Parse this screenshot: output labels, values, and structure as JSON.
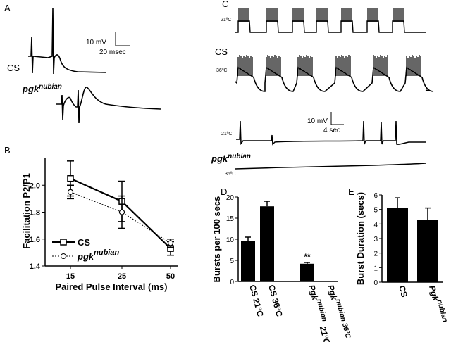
{
  "panels": {
    "A": {
      "label": "A",
      "scale_v": "10 mV",
      "scale_t": "20 msec",
      "cs_label": "CS",
      "pgk_label": "pgk",
      "pgk_sup": "nubian"
    },
    "B": {
      "label": "B"
    },
    "C": {
      "label": "C",
      "cs_label": "CS",
      "temp_low": "21ºC",
      "temp_high": "36ºC",
      "temp_low_2": "21ºC",
      "temp_high_2": "36ºC",
      "scale_v": "10 mV",
      "scale_t": "4 sec",
      "pgk_label": "pgk",
      "pgk_sup": "nubian"
    },
    "D": {
      "label": "D"
    },
    "E": {
      "label": "E"
    }
  },
  "chart_data": [
    {
      "panel": "B",
      "type": "line",
      "x": [
        15,
        25,
        50
      ],
      "xticklabels": [
        "15",
        "25",
        "50"
      ],
      "xlabel": "Paired Pulse Interval (ms)",
      "ylabel": "Facilitation P2/P1",
      "ylim": [
        1.4,
        2.2
      ],
      "yticks": [
        1.4,
        1.6,
        1.8,
        2.0
      ],
      "yticklabels": [
        "1.4",
        "1.6",
        "1.8",
        "2.0"
      ],
      "series": [
        {
          "name": "CS",
          "values": [
            2.05,
            1.88,
            1.53
          ],
          "err": [
            0.13,
            0.15,
            0.05
          ],
          "marker": "square",
          "line": "solid"
        },
        {
          "name": "pgk nubian",
          "values": [
            1.95,
            1.8,
            1.57
          ],
          "err": [
            0.05,
            0.12,
            0.03
          ],
          "marker": "circle",
          "line": "dotted"
        }
      ],
      "legend": "bottom-left",
      "legend_cs": "CS",
      "legend_pgk": "pgk",
      "legend_pgk_sup": "nubian"
    },
    {
      "panel": "D",
      "type": "bar",
      "categories": [
        "CS 21ºC",
        "CS 36ºC",
        "Pgk nubian 21ºC",
        "Pgk nubian 36ºC"
      ],
      "cat_labels": [
        {
          "main": "CS 21ºC",
          "sup": ""
        },
        {
          "main": "CS 36ºC",
          "sup": ""
        },
        {
          "main": "Pgk",
          "sup": "nubian",
          "tail": "21ºC"
        },
        {
          "main": "Pgk",
          "sup": "nubian 36ºC",
          "tail": ""
        }
      ],
      "values": [
        9.5,
        17.8,
        4.2,
        0
      ],
      "err": [
        1.0,
        1.2,
        0.3,
        0
      ],
      "ylabel": "Bursts per 100 secs",
      "ylim": [
        0,
        20
      ],
      "yticks": [
        0,
        5,
        10,
        15,
        20
      ],
      "yticklabels": [
        "0",
        "5",
        "10",
        "15",
        "20"
      ],
      "annotation": "**"
    },
    {
      "panel": "E",
      "type": "bar",
      "categories": [
        "CS",
        "Pgk nubian"
      ],
      "cat_labels": [
        {
          "main": "CS",
          "sup": ""
        },
        {
          "main": "Pgk",
          "sup": "nubian"
        }
      ],
      "values": [
        5.1,
        4.3
      ],
      "err": [
        0.7,
        0.8
      ],
      "ylabel": "Burst Duration (secs)",
      "ylim": [
        0,
        6
      ],
      "yticks": [
        0,
        1,
        2,
        3,
        4,
        5,
        6
      ],
      "yticklabels": [
        "0",
        "1",
        "2",
        "3",
        "4",
        "5",
        "6"
      ]
    }
  ]
}
